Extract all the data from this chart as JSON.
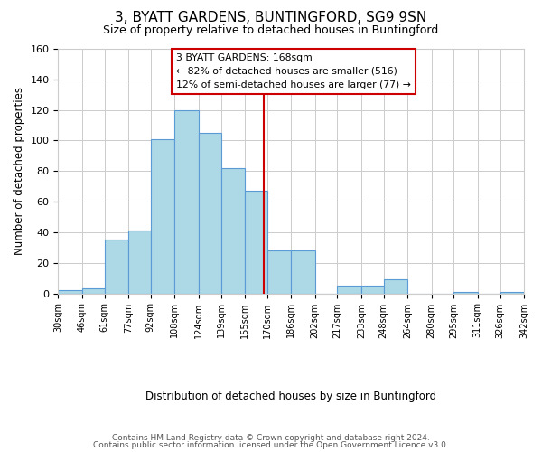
{
  "title": "3, BYATT GARDENS, BUNTINGFORD, SG9 9SN",
  "subtitle": "Size of property relative to detached houses in Buntingford",
  "xlabel": "Distribution of detached houses by size in Buntingford",
  "ylabel": "Number of detached properties",
  "footer_line1": "Contains HM Land Registry data © Crown copyright and database right 2024.",
  "footer_line2": "Contains public sector information licensed under the Open Government Licence v3.0.",
  "bin_edges": [
    30,
    46,
    61,
    77,
    92,
    108,
    124,
    139,
    155,
    170,
    186,
    202,
    217,
    233,
    248,
    264,
    280,
    295,
    311,
    326,
    342
  ],
  "bin_labels": [
    "30sqm",
    "46sqm",
    "61sqm",
    "77sqm",
    "92sqm",
    "108sqm",
    "124sqm",
    "139sqm",
    "155sqm",
    "170sqm",
    "186sqm",
    "202sqm",
    "217sqm",
    "233sqm",
    "248sqm",
    "264sqm",
    "280sqm",
    "295sqm",
    "311sqm",
    "326sqm",
    "342sqm"
  ],
  "counts": [
    2,
    3,
    35,
    41,
    101,
    120,
    105,
    82,
    67,
    28,
    28,
    0,
    5,
    5,
    9,
    0,
    0,
    1,
    0,
    1
  ],
  "bar_color": "#add8e6",
  "bar_edge_color": "#5b9bd5",
  "property_value": 168,
  "vline_color": "#cc0000",
  "annotation_line1": "3 BYATT GARDENS: 168sqm",
  "annotation_line2": "← 82% of detached houses are smaller (516)",
  "annotation_line3": "12% of semi-detached houses are larger (77) →",
  "annotation_box_edge": "#cc0000",
  "ylim": [
    0,
    160
  ],
  "yticks": [
    0,
    20,
    40,
    60,
    80,
    100,
    120,
    140,
    160
  ],
  "background_color": "#ffffff",
  "grid_color": "#cccccc"
}
